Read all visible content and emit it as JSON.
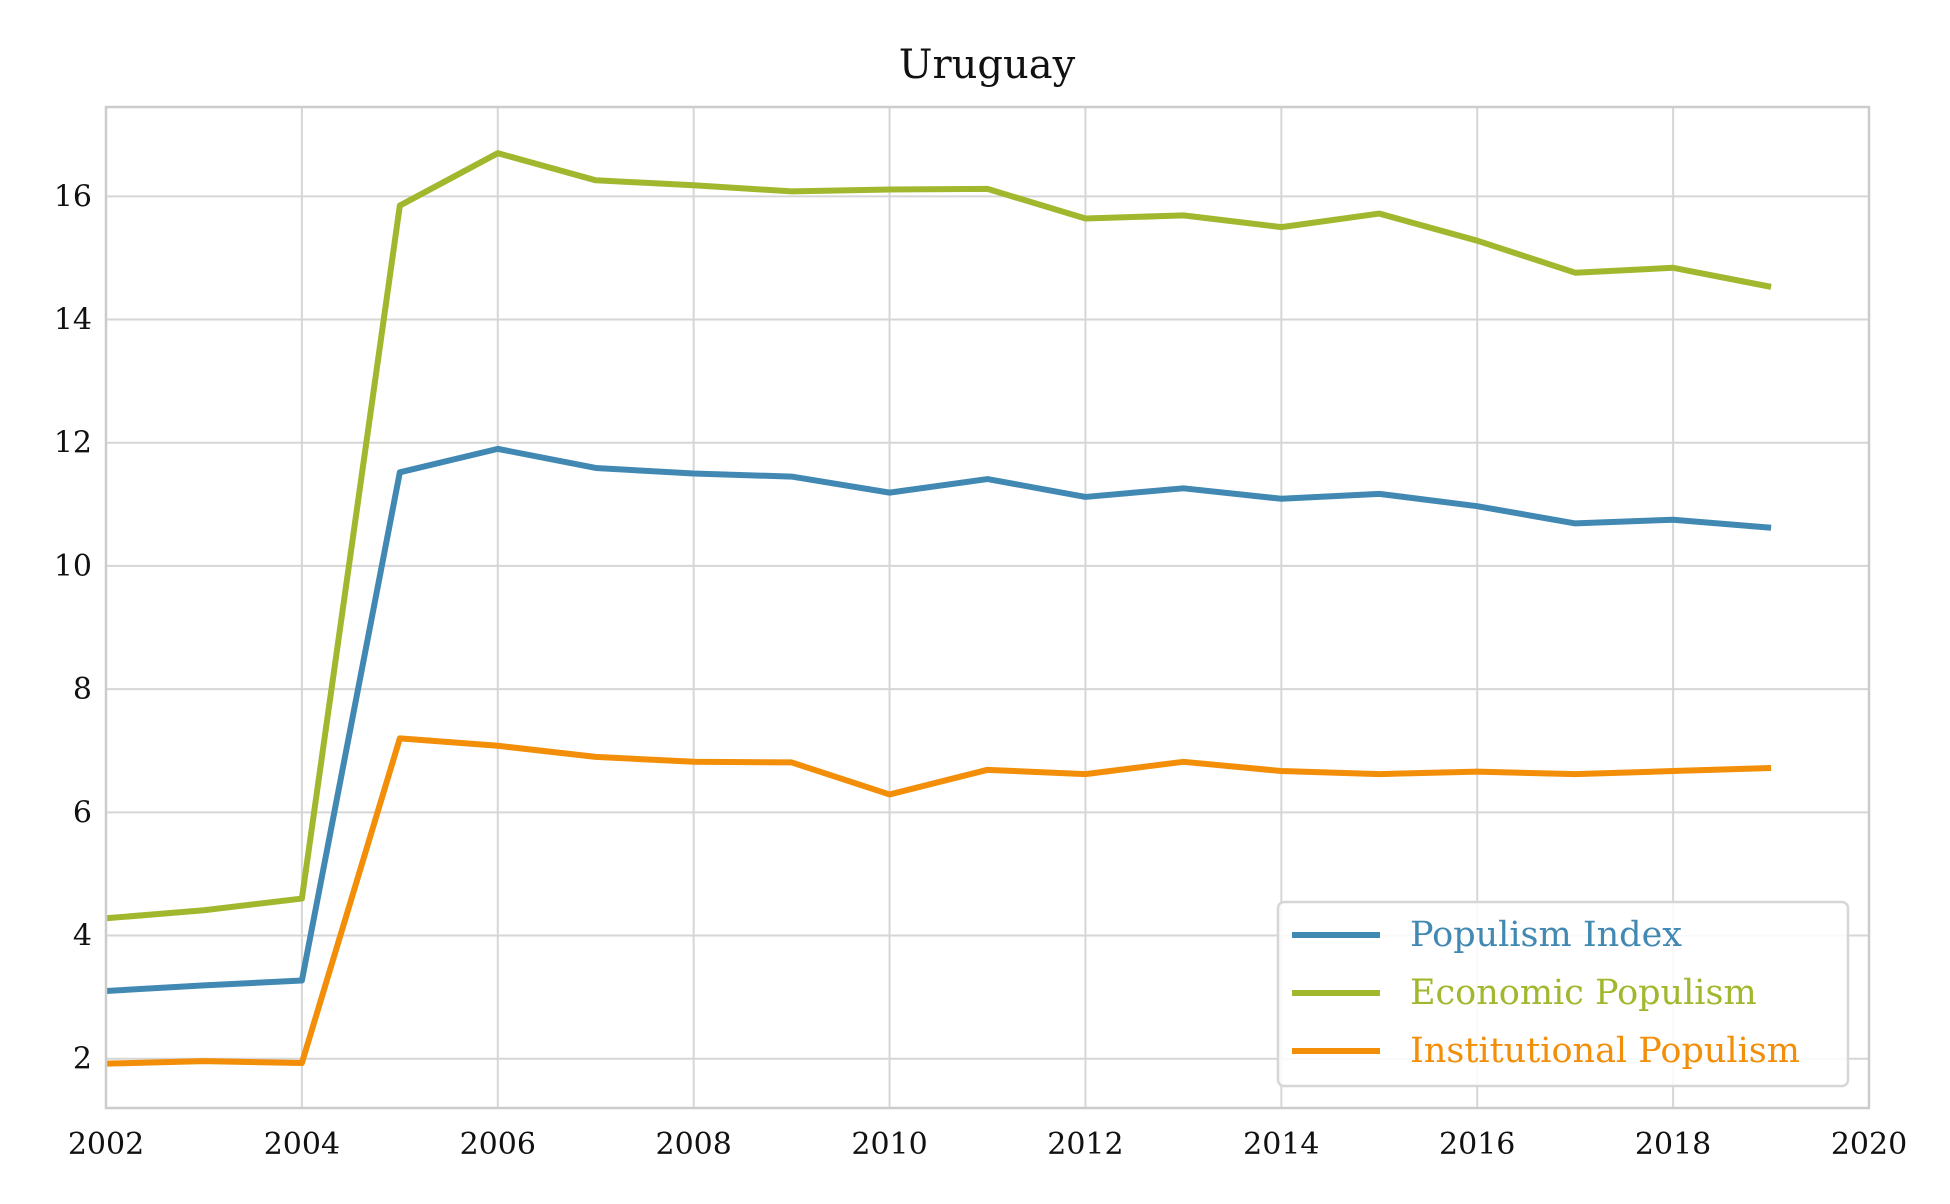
{
  "chart_data": {
    "type": "line",
    "title": "Uruguay",
    "xlabel": "",
    "ylabel": "",
    "xlim": [
      2002,
      2020
    ],
    "ylim": [
      1.2,
      17.45
    ],
    "x_ticks": [
      "2002",
      "2004",
      "2006",
      "2008",
      "2010",
      "2012",
      "2014",
      "2016",
      "2018",
      "2020"
    ],
    "y_ticks": [
      "2",
      "4",
      "6",
      "8",
      "10",
      "12",
      "14",
      "16"
    ],
    "grid": true,
    "legend_position": "lower-right",
    "x": [
      2002,
      2003,
      2004,
      2005,
      2006,
      2007,
      2008,
      2009,
      2010,
      2011,
      2012,
      2013,
      2014,
      2015,
      2016,
      2017,
      2018,
      2019
    ],
    "series": [
      {
        "name": "Populism Index",
        "color": "#4189b3",
        "values": [
          3.1,
          3.19,
          3.27,
          11.52,
          11.9,
          11.59,
          11.5,
          11.45,
          11.19,
          11.41,
          11.12,
          11.26,
          11.09,
          11.17,
          10.97,
          10.69,
          10.75,
          10.62
        ]
      },
      {
        "name": "Economic Populism",
        "color": "#a1b72e",
        "values": [
          4.28,
          4.41,
          4.6,
          15.85,
          16.7,
          16.26,
          16.18,
          16.08,
          16.11,
          16.12,
          15.64,
          15.69,
          15.5,
          15.72,
          15.28,
          14.76,
          14.84,
          14.53
        ]
      },
      {
        "name": "Institutional Populism",
        "color": "#f28e08",
        "values": [
          1.92,
          1.96,
          1.93,
          7.2,
          7.08,
          6.9,
          6.82,
          6.81,
          6.29,
          6.69,
          6.62,
          6.82,
          6.67,
          6.62,
          6.66,
          6.62,
          6.67,
          6.72
        ]
      }
    ]
  }
}
